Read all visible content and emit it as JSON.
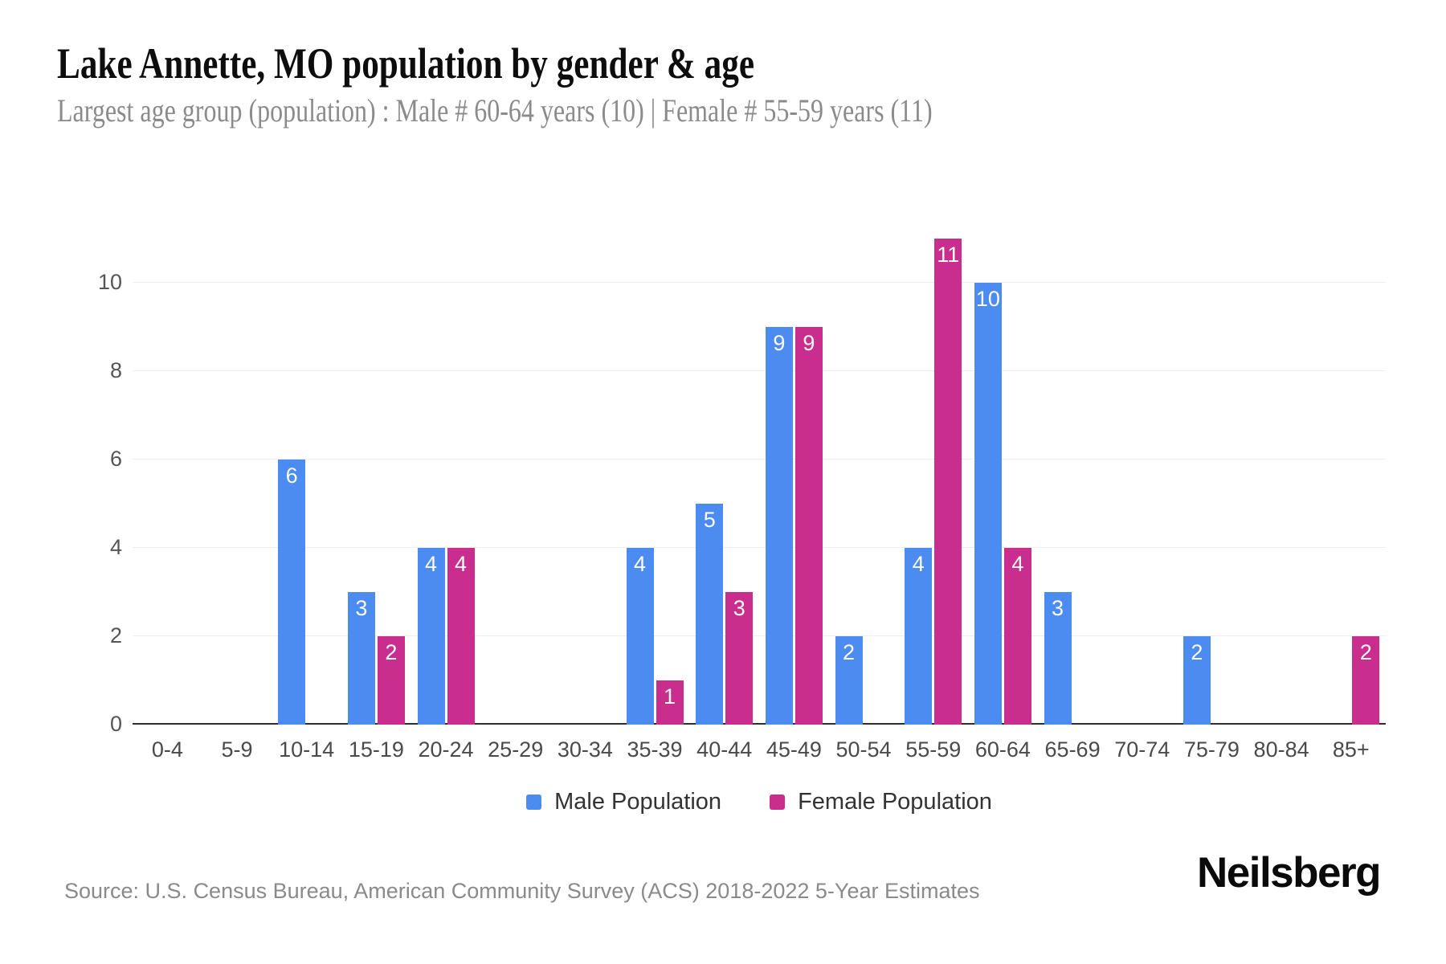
{
  "header": {
    "title": "Lake Annette, MO population by gender & age",
    "subtitle": "Largest age group (population) : Male # 60-64 years (10) | Female # 55-59 years (11)"
  },
  "chart_data": {
    "type": "bar",
    "title": "Lake Annette, MO population by gender & age",
    "categories": [
      "0-4",
      "5-9",
      "10-14",
      "15-19",
      "20-24",
      "25-29",
      "30-34",
      "35-39",
      "40-44",
      "45-49",
      "50-54",
      "55-59",
      "60-64",
      "65-69",
      "70-74",
      "75-79",
      "80-84",
      "85+"
    ],
    "series": [
      {
        "name": "Male Population",
        "color": "#4c8bf0",
        "values": [
          0,
          0,
          6,
          3,
          4,
          0,
          0,
          4,
          5,
          9,
          2,
          4,
          10,
          3,
          0,
          2,
          0,
          0
        ]
      },
      {
        "name": "Female Population",
        "color": "#c92d8e",
        "values": [
          0,
          0,
          0,
          2,
          4,
          0,
          0,
          1,
          3,
          9,
          0,
          11,
          4,
          0,
          0,
          0,
          0,
          2
        ]
      }
    ],
    "yticks": [
      0,
      2,
      4,
      6,
      8,
      10
    ],
    "ylim": [
      0,
      11.4
    ],
    "xlabel": "",
    "ylabel": "",
    "grid": true,
    "legend_position": "bottom",
    "value_labels": true
  },
  "footer": {
    "source": "Source: U.S. Census Bureau, American Community Survey (ACS) 2018-2022 5-Year Estimates",
    "brand": "Neilsberg"
  }
}
